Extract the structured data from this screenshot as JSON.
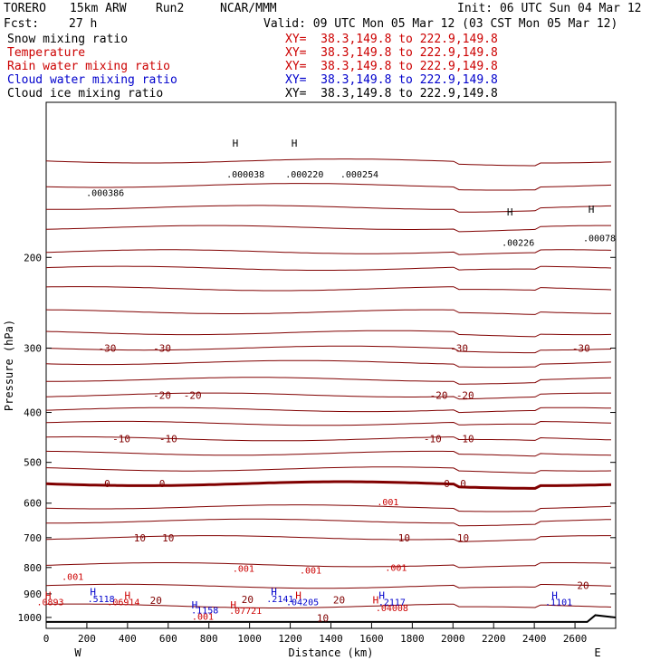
{
  "header": {
    "model": "TORERO",
    "config": "15km ARW",
    "run": "Run2",
    "org": "NCAR/MMM",
    "init": "Init: 06 UTC Sun 04 Mar 12",
    "fcst_label": "Fcst:",
    "fcst_value": "27 h",
    "valid": "Valid: 09 UTC Mon 05 Mar 12 (03 CST Mon 05 Mar 12)"
  },
  "fields": [
    {
      "name": "Snow mixing ratio",
      "color": "#000000",
      "xy": "XY=  38.3,149.8 to 222.9,149.8"
    },
    {
      "name": "Temperature",
      "color": "#cc0000",
      "xy": "XY=  38.3,149.8 to 222.9,149.8"
    },
    {
      "name": "Rain water mixing ratio",
      "color": "#cc0000",
      "xy": "XY=  38.3,149.8 to 222.9,149.8"
    },
    {
      "name": "Cloud water mixing ratio",
      "color": "#0000cc",
      "xy": "XY=  38.3,149.8 to 222.9,149.8"
    },
    {
      "name": "Cloud ice mixing ratio",
      "color": "#000000",
      "xy": "XY=  38.3,149.8 to 222.9,149.8"
    }
  ],
  "chart_data": {
    "type": "cross-section contour",
    "xlabel": "Distance (km)",
    "ylabel": "Pressure (hPa)",
    "xlim": [
      0,
      2800
    ],
    "ylim": [
      1050,
      100
    ],
    "y_scale": "log",
    "x_ticks": [
      0,
      200,
      400,
      600,
      800,
      1000,
      1200,
      1400,
      1600,
      1800,
      2000,
      2200,
      2400,
      2600
    ],
    "y_ticks": [
      200,
      300,
      400,
      500,
      600,
      700,
      800,
      900,
      1000
    ],
    "x_end_labels": {
      "left": "W",
      "right": "E"
    },
    "temperature_contours": {
      "color": "#800000",
      "labeled": [
        {
          "value": "-30",
          "labels_x": [
            300,
            570,
            2030,
            2630
          ],
          "p": 300
        },
        {
          "value": "-20",
          "labels_x": [
            570,
            720,
            1930,
            2060
          ],
          "p": 370
        },
        {
          "value": "-10",
          "labels_x": [
            370,
            600,
            1900,
            2060
          ],
          "p": 450
        },
        {
          "value": "0",
          "labels_x": [
            300,
            570,
            1970,
            2050
          ],
          "p": 550
        },
        {
          "value": "10",
          "labels_x": [
            460,
            600,
            1760,
            2050
          ],
          "p": 700
        }
      ],
      "levels_p": [
        130,
        145,
        160,
        175,
        195,
        210,
        230,
        255,
        280,
        300,
        320,
        345,
        370,
        395,
        420,
        450,
        480,
        515,
        550,
        610,
        650,
        700,
        790,
        870,
        950
      ]
    },
    "rain_labels": [
      {
        "text": ".001",
        "x": 1680,
        "p": 605
      },
      {
        "text": ".001",
        "x": 970,
        "p": 815
      },
      {
        "text": ".001",
        "x": 1300,
        "p": 822
      },
      {
        "text": ".001",
        "x": 1720,
        "p": 812
      },
      {
        "text": ".001",
        "x": 130,
        "p": 845
      },
      {
        "text": ".0893",
        "x": 20,
        "p": 948
      },
      {
        "text": ".06914",
        "x": 380,
        "p": 948
      },
      {
        "text": ".07721",
        "x": 980,
        "p": 985
      },
      {
        "text": ".04008",
        "x": 1700,
        "p": 973
      },
      {
        "text": ".001",
        "x": 770,
        "p": 1010
      }
    ],
    "cloud_water_labels": [
      {
        "text": ".5118",
        "x": 270,
        "p": 933
      },
      {
        "text": ".2141",
        "x": 1150,
        "p": 933
      },
      {
        "text": ".04205",
        "x": 1260,
        "p": 948
      },
      {
        "text": ".1158",
        "x": 780,
        "p": 983
      },
      {
        "text": ".2117",
        "x": 1700,
        "p": 948
      },
      {
        "text": ".1101",
        "x": 2520,
        "p": 948
      }
    ],
    "snow_labels": [
      {
        "text": ".000038",
        "x": 980,
        "p": 140
      },
      {
        "text": ".000220",
        "x": 1270,
        "p": 140
      },
      {
        "text": ".000254",
        "x": 1540,
        "p": 140
      },
      {
        "text": ".000386",
        "x": 290,
        "p": 152
      }
    ],
    "ice_labels": [
      {
        "text": ".00226",
        "x": 2320,
        "p": 190
      },
      {
        "text": ".00078",
        "x": 2720,
        "p": 186
      }
    ],
    "contour_annotations": [
      {
        "text": "20",
        "x": 540,
        "p": 942,
        "color": "#800000"
      },
      {
        "text": "20",
        "x": 990,
        "p": 938,
        "color": "#800000"
      },
      {
        "text": "20",
        "x": 1440,
        "p": 940,
        "color": "#800000"
      },
      {
        "text": "20",
        "x": 2640,
        "p": 880,
        "color": "#800000"
      },
      {
        "text": "10",
        "x": 1360,
        "p": 1018,
        "color": "#800000"
      }
    ],
    "maxima_markers": [
      {
        "text": "H",
        "x": 10,
        "p": 920,
        "color": "#cc0000"
      },
      {
        "text": "H",
        "x": 230,
        "p": 905,
        "color": "#0000cc"
      },
      {
        "text": "H",
        "x": 400,
        "p": 920,
        "color": "#cc0000"
      },
      {
        "text": "H",
        "x": 730,
        "p": 960,
        "color": "#0000cc"
      },
      {
        "text": "H",
        "x": 920,
        "p": 960,
        "color": "#cc0000"
      },
      {
        "text": "H",
        "x": 1120,
        "p": 905,
        "color": "#0000cc"
      },
      {
        "text": "H",
        "x": 1240,
        "p": 920,
        "color": "#cc0000"
      },
      {
        "text": "H",
        "x": 1650,
        "p": 920,
        "color": "#0000cc"
      },
      {
        "text": "H",
        "x": 1620,
        "p": 940,
        "color": "#cc0000"
      },
      {
        "text": "H",
        "x": 2500,
        "p": 920,
        "color": "#0000cc"
      },
      {
        "text": "H",
        "x": 930,
        "p": 122,
        "color": "#000000"
      },
      {
        "text": "H",
        "x": 1220,
        "p": 122,
        "color": "#000000"
      },
      {
        "text": "H",
        "x": 2280,
        "p": 166,
        "color": "#000000"
      },
      {
        "text": "H",
        "x": 2680,
        "p": 164,
        "color": "#000000"
      }
    ]
  }
}
